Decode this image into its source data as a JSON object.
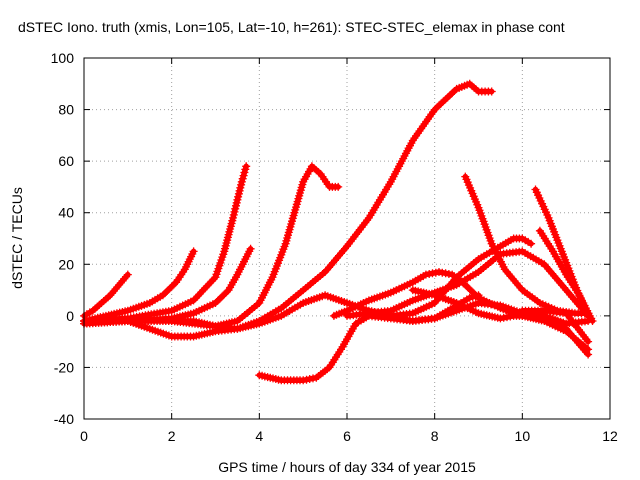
{
  "chart_data": {
    "type": "line",
    "title": "dSTEC Iono. truth (xmis, Lon=105, Lat=-10, h=261): STEC-STEC_elemax in phase cont",
    "xlabel": "GPS time / hours of day 334 of year 2015",
    "ylabel": "dSTEC  / TECUs",
    "xlim": [
      0,
      12
    ],
    "ylim": [
      -40,
      100
    ],
    "xticks": [
      0,
      2,
      4,
      6,
      8,
      10,
      12
    ],
    "yticks": [
      -40,
      -20,
      0,
      20,
      40,
      60,
      80,
      100
    ],
    "grid": true,
    "marker": "plus",
    "colors": {
      "series": "#ff0000"
    },
    "series": [
      {
        "x": [
          0,
          0.2,
          0.4,
          0.6,
          0.8,
          1.0
        ],
        "y": [
          0,
          2,
          5,
          8,
          12,
          16
        ]
      },
      {
        "x": [
          0,
          0.5,
          1.0,
          1.5,
          1.8,
          2.1,
          2.3,
          2.5
        ],
        "y": [
          -2,
          0,
          2,
          5,
          8,
          13,
          18,
          25
        ]
      },
      {
        "x": [
          0,
          1,
          2,
          2.5,
          3.0,
          3.2,
          3.4,
          3.6,
          3.7
        ],
        "y": [
          -2,
          -1,
          2,
          6,
          15,
          25,
          38,
          52,
          58
        ]
      },
      {
        "x": [
          0,
          1,
          2,
          2.5,
          3.0,
          3.3,
          3.5,
          3.8
        ],
        "y": [
          -3,
          -2,
          -1,
          1,
          5,
          10,
          16,
          26
        ]
      },
      {
        "x": [
          0,
          1,
          2,
          3,
          3.5,
          4.0,
          4.3,
          4.6,
          4.8,
          5.0,
          5.2,
          5.4,
          5.6,
          5.8
        ],
        "y": [
          -3,
          -2,
          -2,
          -4,
          -2,
          5,
          15,
          28,
          40,
          52,
          58,
          55,
          50,
          50
        ]
      },
      {
        "x": [
          0,
          1,
          1.5,
          2,
          2.5,
          3,
          3.5,
          4,
          4.5,
          5,
          5.5,
          6,
          6.5,
          7,
          7.5,
          8,
          8.5,
          8.8,
          9.0,
          9.3
        ],
        "y": [
          -2,
          -2,
          -5,
          -8,
          -8,
          -6,
          -5,
          -2,
          3,
          10,
          17,
          27,
          38,
          52,
          68,
          80,
          88,
          90,
          87,
          87
        ]
      },
      {
        "x": [
          0,
          1,
          2,
          2.5,
          3,
          3.5,
          4,
          4.5,
          5,
          5.5,
          6,
          6.5,
          7,
          7.5,
          8,
          8.5,
          9,
          9.5,
          10,
          10.5,
          11,
          11.5
        ],
        "y": [
          -2,
          -1,
          -2,
          -2,
          -4,
          -5,
          -3,
          0,
          5,
          8,
          5,
          2,
          0,
          -2,
          -1,
          2,
          5,
          4,
          1,
          0,
          -3,
          -2
        ]
      },
      {
        "x": [
          4.0,
          4.5,
          5.0,
          5.3,
          5.6,
          5.9,
          6.2,
          6.5,
          7.0,
          7.5,
          8.0,
          8.3,
          8.6,
          8.8,
          9.0
        ],
        "y": [
          -23,
          -25,
          -25,
          -24,
          -20,
          -12,
          -3,
          0,
          -1,
          -2,
          -1,
          2,
          5,
          7,
          8
        ]
      },
      {
        "x": [
          5.7,
          6.0,
          6.5,
          7.0,
          7.5,
          7.8,
          8.1,
          8.4,
          8.7,
          9.0,
          9.5,
          10.0,
          10.5,
          11.0,
          11.5
        ],
        "y": [
          0,
          2,
          6,
          9,
          13,
          16,
          17,
          16,
          12,
          7,
          3,
          0,
          -2,
          -6,
          -13
        ]
      },
      {
        "x": [
          6.0,
          6.5,
          7.0,
          7.5,
          8.0,
          8.5,
          9.0,
          9.5,
          9.8,
          10.0,
          10.2
        ],
        "y": [
          0,
          1,
          0,
          1,
          5,
          15,
          22,
          27,
          30,
          30,
          28
        ]
      },
      {
        "x": [
          7.5,
          8.0,
          8.5,
          9.0,
          9.5,
          9.8,
          10.0,
          10.2,
          10.5,
          11.0,
          11.5
        ],
        "y": [
          10,
          8,
          5,
          1,
          -1,
          0,
          0,
          1,
          0,
          -5,
          -15
        ]
      },
      {
        "x": [
          6.5,
          7.0,
          7.5,
          8.0,
          8.5,
          9.0,
          9.5,
          10.0,
          10.5,
          11.0,
          11.5
        ],
        "y": [
          1,
          2,
          6,
          9,
          12,
          17,
          24,
          25,
          20,
          10,
          0
        ]
      },
      {
        "x": [
          8.7,
          9.0,
          9.3,
          9.6,
          10.0,
          10.4,
          10.8,
          11.2,
          11.5
        ],
        "y": [
          54,
          42,
          28,
          18,
          10,
          5,
          2,
          1,
          1
        ]
      },
      {
        "x": [
          10.3,
          10.6,
          10.9,
          11.2,
          11.5
        ],
        "y": [
          49,
          38,
          25,
          12,
          0
        ]
      },
      {
        "x": [
          10.4,
          10.7,
          11.0,
          11.3,
          11.6
        ],
        "y": [
          33,
          25,
          16,
          8,
          -2
        ]
      },
      {
        "x": [
          10.0,
          10.5,
          11.0,
          11.5
        ],
        "y": [
          2,
          2,
          1,
          -10
        ]
      }
    ]
  }
}
